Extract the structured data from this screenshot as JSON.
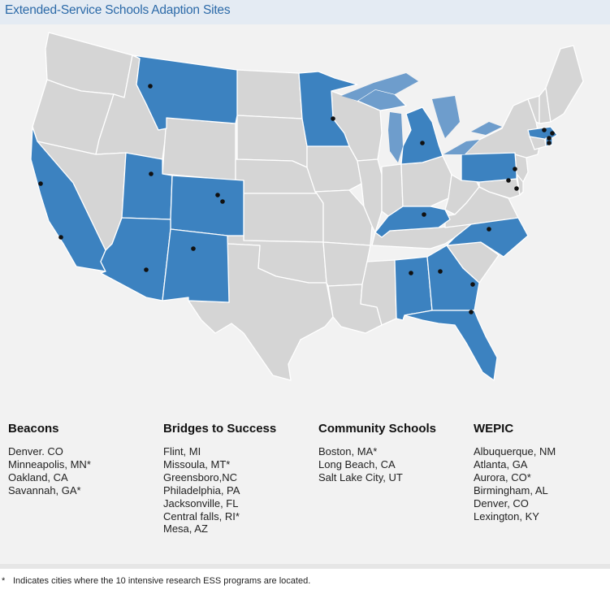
{
  "title": "Extended-Service Schools Adaption Sites",
  "colors": {
    "highlight": "#3c82c0",
    "lake_highlight": "#6e9dcc",
    "state": "#d5d5d5",
    "border": "#ffffff",
    "panel": "#f2f2f2",
    "title": "#2c6aa8"
  },
  "highlighted_states": [
    "WA-not",
    "CA",
    "MT",
    "UT",
    "CO",
    "AZ",
    "NM",
    "MN",
    "MI",
    "KY",
    "PA",
    "NC",
    "AL",
    "GA",
    "FL",
    "MA",
    "RI"
  ],
  "programs": [
    {
      "name": "Beacons",
      "cities": [
        "Denver. CO",
        "Minneapolis, MN*",
        "Oakland, CA",
        "Savannah, GA*"
      ]
    },
    {
      "name": "Bridges to Success",
      "cities": [
        "Flint, MI",
        "Missoula, MT*",
        "Greensboro,NC",
        "Philadelphia, PA",
        "Jacksonville, FL",
        "Central falls, RI*",
        "Mesa, AZ"
      ]
    },
    {
      "name": "Community Schools",
      "cities": [
        "Boston, MA*",
        "Long Beach, CA",
        "Salt Lake City, UT"
      ]
    },
    {
      "name": "WEPIC",
      "cities": [
        "Albuquerque, NM",
        "Atlanta, GA",
        "Aurora, CO*",
        "Birmingham, AL",
        "Denver, CO",
        "Lexington, KY"
      ]
    }
  ],
  "footnote": {
    "symbol": "*",
    "text": "Indicates cities where the 10 intensive research ESS programs are located."
  }
}
